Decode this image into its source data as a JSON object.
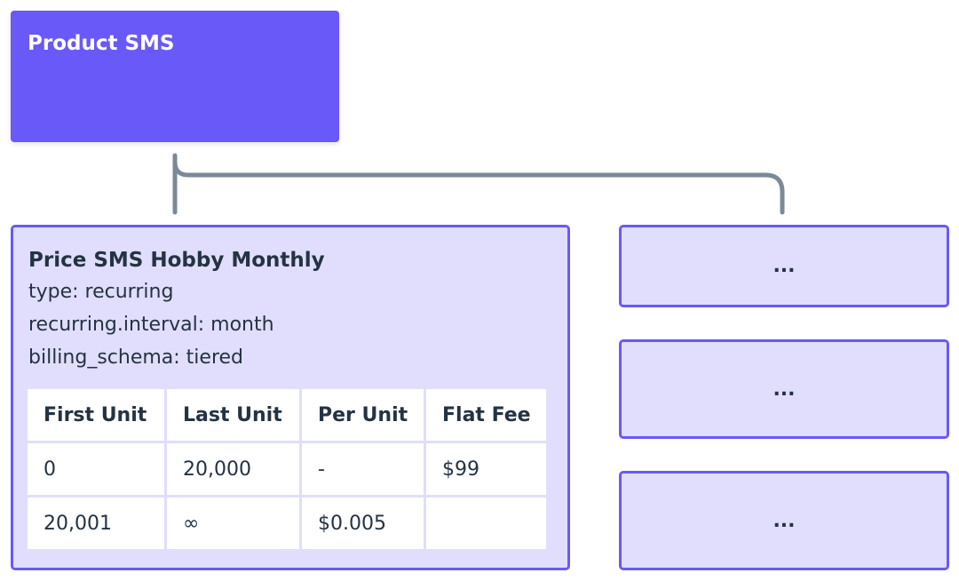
{
  "product": {
    "title": "Product SMS"
  },
  "price": {
    "title": "Price SMS Hobby Monthly",
    "lines": [
      "type: recurring",
      "recurring.interval: month",
      "billing_schema: tiered"
    ],
    "table": {
      "headers": [
        "First Unit",
        "Last Unit",
        "Per Unit",
        "Flat Fee"
      ],
      "rows": [
        [
          "0",
          "20,000",
          "-",
          "$99"
        ],
        [
          "20,001",
          "∞",
          "$0.005",
          ""
        ]
      ]
    }
  },
  "other_prices": [
    "...",
    "...",
    "..."
  ],
  "colors": {
    "product_fill": "#6959F8",
    "price_fill": "#E0DEFC",
    "connector": "#7A8A99",
    "text": "#243342"
  }
}
